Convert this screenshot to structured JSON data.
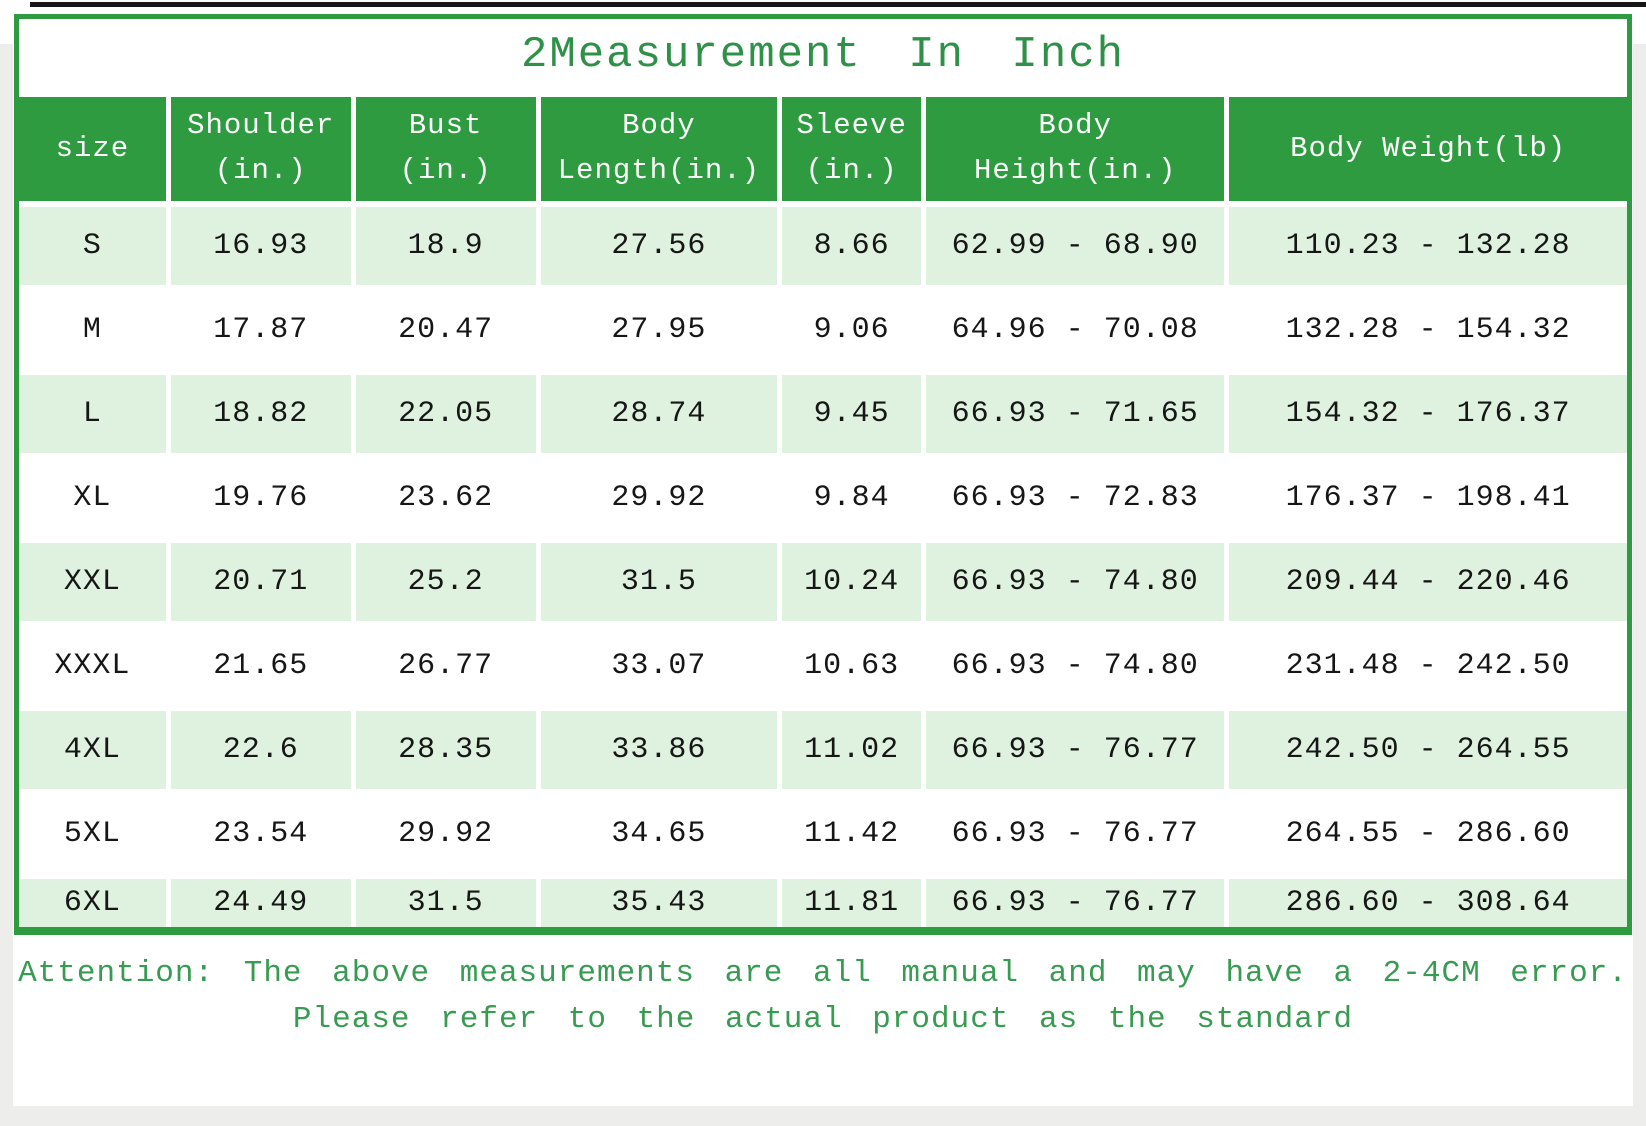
{
  "title": "2Measurement In Inch",
  "colors": {
    "header_green": "#2f9b41",
    "row_light_green": "#dff1df",
    "title_green": "#2e9147",
    "note_green": "#389b52",
    "border_green": "#2f9b41"
  },
  "table": {
    "columns": [
      {
        "lines": [
          "size"
        ]
      },
      {
        "lines": [
          "Shoulder",
          "(in.)"
        ]
      },
      {
        "lines": [
          "Bust",
          "(in.)"
        ]
      },
      {
        "lines": [
          "Body",
          "Length(in.)"
        ]
      },
      {
        "lines": [
          "Sleeve",
          "(in.)"
        ]
      },
      {
        "lines": [
          "Body",
          "Height(in.)"
        ]
      },
      {
        "lines": [
          "Body Weight(lb)"
        ]
      }
    ],
    "rows": [
      {
        "cells": [
          "S",
          "16.93",
          "18.9",
          "27.56",
          "8.66",
          "62.99 - 68.90",
          "110.23 - 132.28"
        ]
      },
      {
        "cells": [
          "M",
          "17.87",
          "20.47",
          "27.95",
          "9.06",
          "64.96 - 70.08",
          "132.28 - 154.32"
        ]
      },
      {
        "cells": [
          "L",
          "18.82",
          "22.05",
          "28.74",
          "9.45",
          "66.93 - 71.65",
          "154.32 - 176.37"
        ]
      },
      {
        "cells": [
          "XL",
          "19.76",
          "23.62",
          "29.92",
          "9.84",
          "66.93 - 72.83",
          "176.37 - 198.41"
        ]
      },
      {
        "cells": [
          "XXL",
          "20.71",
          "25.2",
          "31.5",
          "10.24",
          "66.93 - 74.80",
          "209.44 - 220.46"
        ]
      },
      {
        "cells": [
          "XXXL",
          "21.65",
          "26.77",
          "33.07",
          "10.63",
          "66.93 - 74.80",
          "231.48 - 242.50"
        ]
      },
      {
        "cells": [
          "4XL",
          "22.6",
          "28.35",
          "33.86",
          "11.02",
          "66.93 - 76.77",
          "242.50 - 264.55"
        ]
      },
      {
        "cells": [
          "5XL",
          "23.54",
          "29.92",
          "34.65",
          "11.42",
          "66.93 - 76.77",
          "264.55 - 286.60"
        ]
      },
      {
        "cells": [
          "6XL",
          "24.49",
          "31.5",
          "35.43",
          "11.81",
          "66.93 - 76.77",
          "286.60 - 308.64"
        ]
      }
    ]
  },
  "note": {
    "line1": "Attention: The above measurements are all manual and may have a 2-4CM error.",
    "line2": "Please refer to the actual product as the standard"
  }
}
